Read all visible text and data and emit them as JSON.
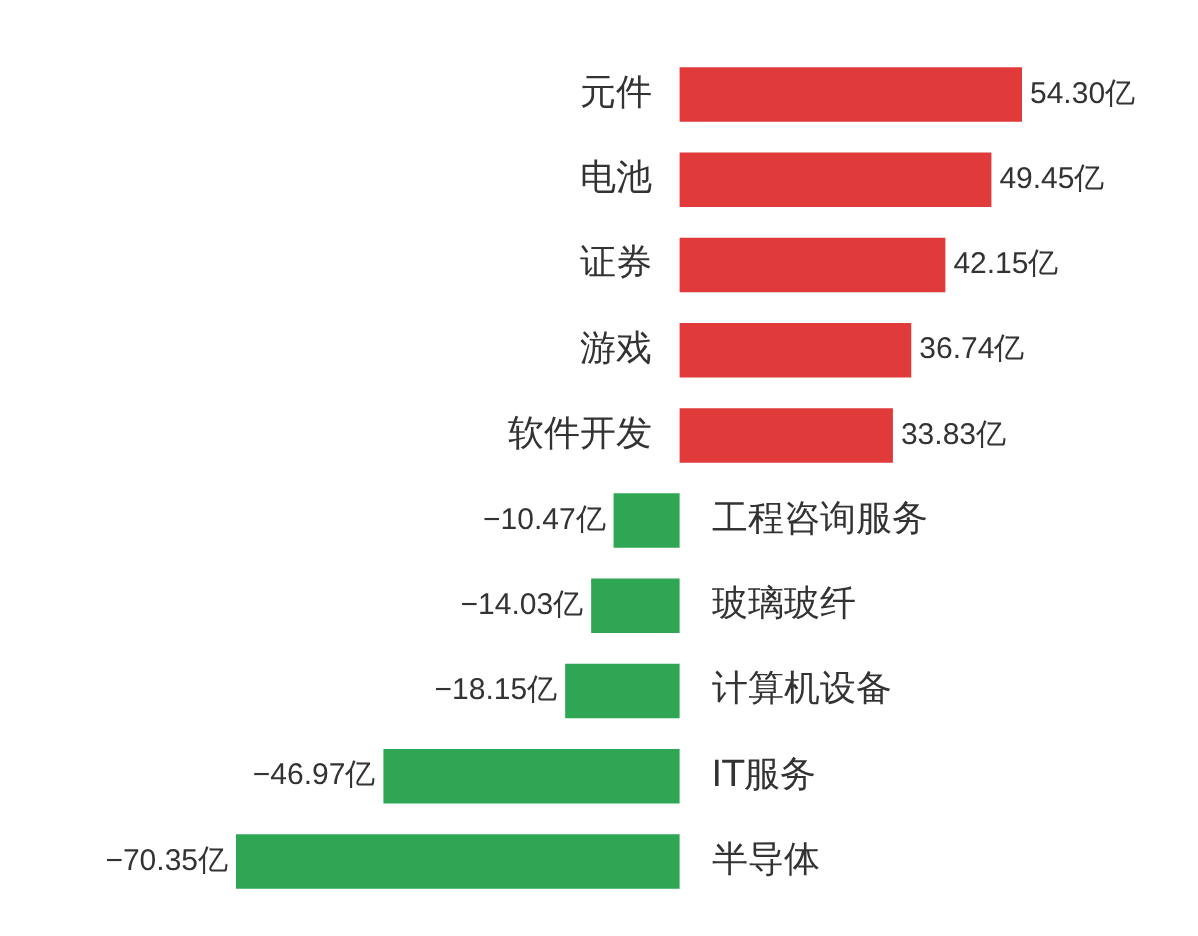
{
  "chart_data": {
    "type": "bar",
    "orientation": "horizontal",
    "categories": [
      "元件",
      "电池",
      "证券",
      "游戏",
      "软件开发",
      "工程咨询服务",
      "玻璃玻纤",
      "计算机设备",
      "IT服务",
      "半导体"
    ],
    "values": [
      54.3,
      49.45,
      42.15,
      36.74,
      33.83,
      -10.47,
      -14.03,
      -18.15,
      -46.97,
      -70.35
    ],
    "colors": [
      "#e03a3a",
      "#e03a3a",
      "#e03a3a",
      "#e03a3a",
      "#e03a3a",
      "#2ea653",
      "#2ea653",
      "#2ea653",
      "#2ea653",
      "#2ea653"
    ],
    "value_labels": [
      "54.30亿",
      "49.45亿",
      "42.15亿",
      "36.74亿",
      "33.83亿",
      "−10.47亿",
      "−14.03亿",
      "−18.15亿",
      "−46.97亿",
      "−70.35亿"
    ],
    "legend": false
  }
}
